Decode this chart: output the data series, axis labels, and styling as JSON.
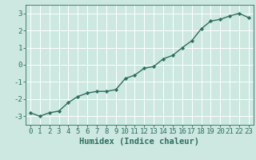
{
  "x": [
    0,
    1,
    2,
    3,
    4,
    5,
    6,
    7,
    8,
    9,
    10,
    11,
    12,
    13,
    14,
    15,
    16,
    17,
    18,
    19,
    20,
    21,
    22,
    23
  ],
  "y": [
    -2.8,
    -3.0,
    -2.8,
    -2.7,
    -2.2,
    -1.85,
    -1.65,
    -1.55,
    -1.55,
    -1.45,
    -0.8,
    -0.6,
    -0.2,
    -0.1,
    0.35,
    0.55,
    1.0,
    1.4,
    2.1,
    2.55,
    2.65,
    2.85,
    3.0,
    2.75
  ],
  "line_color": "#2d6e5e",
  "marker": "D",
  "marker_size": 2.2,
  "line_width": 1.0,
  "xlabel": "Humidex (Indice chaleur)",
  "xlim": [
    -0.5,
    23.5
  ],
  "ylim": [
    -3.5,
    3.5
  ],
  "yticks": [
    -3,
    -2,
    -1,
    0,
    1,
    2,
    3
  ],
  "xticks": [
    0,
    1,
    2,
    3,
    4,
    5,
    6,
    7,
    8,
    9,
    10,
    11,
    12,
    13,
    14,
    15,
    16,
    17,
    18,
    19,
    20,
    21,
    22,
    23
  ],
  "bg_color": "#cce8e0",
  "grid_color": "#ffffff",
  "tick_color": "#2d6e5e",
  "label_color": "#2d6e5e",
  "xlabel_fontsize": 7.5,
  "tick_fontsize": 6.5
}
